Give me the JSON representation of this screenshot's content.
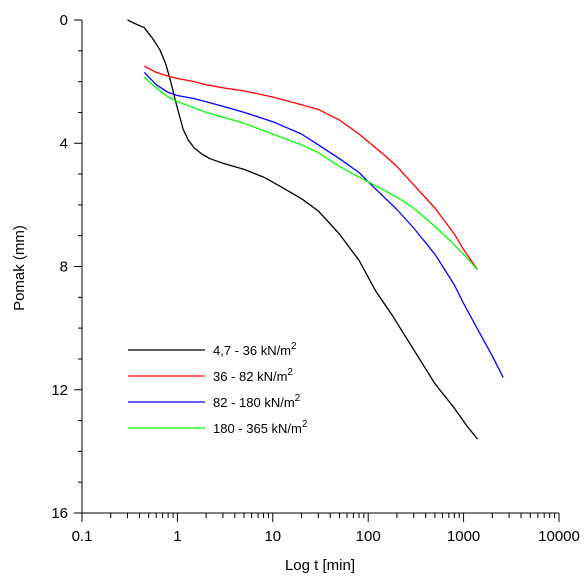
{
  "chart_data": {
    "type": "line",
    "title": "",
    "xlabel": "Log t [min]",
    "ylabel": "Pomak (mm)",
    "x_scale": "log",
    "xlim": [
      0.1,
      10000
    ],
    "ylim": [
      16,
      0
    ],
    "y_inverted": true,
    "x_ticks": [
      0.1,
      1,
      10,
      100,
      1000,
      10000
    ],
    "x_tick_labels": [
      "0.1",
      "1",
      "10",
      "100",
      "1000",
      "10000"
    ],
    "y_ticks": [
      0,
      4,
      8,
      12,
      16
    ],
    "y_tick_labels": [
      "0",
      "4",
      "8",
      "12",
      "16"
    ],
    "grid": false,
    "legend_position": "bottom-left",
    "series": [
      {
        "name": "4,7 - 36 kN/m",
        "name_superscript": "2",
        "color": "#000000",
        "x": [
          0.3,
          0.35,
          0.45,
          0.55,
          0.65,
          0.75,
          0.85,
          0.95,
          1.05,
          1.15,
          1.3,
          1.5,
          1.8,
          2.2,
          3,
          5,
          8,
          12,
          20,
          30,
          50,
          80,
          120,
          180,
          300,
          500,
          800,
          1100,
          1400
        ],
        "y": [
          0,
          0.1,
          0.25,
          0.6,
          0.95,
          1.4,
          2.0,
          2.6,
          3.1,
          3.55,
          3.9,
          4.15,
          4.35,
          4.5,
          4.65,
          4.85,
          5.1,
          5.4,
          5.8,
          6.2,
          6.95,
          7.8,
          8.8,
          9.6,
          10.7,
          11.8,
          12.6,
          13.2,
          13.6
        ]
      },
      {
        "name": "36 - 82 kN/m",
        "name_superscript": "2",
        "color": "#ff0000",
        "x": [
          0.45,
          0.6,
          0.8,
          1,
          1.5,
          2,
          3,
          5,
          10,
          20,
          30,
          50,
          80,
          100,
          150,
          200,
          300,
          500,
          800,
          1000,
          1400
        ],
        "y": [
          1.5,
          1.7,
          1.82,
          1.9,
          2.0,
          2.1,
          2.2,
          2.3,
          2.5,
          2.75,
          2.9,
          3.25,
          3.7,
          3.95,
          4.4,
          4.75,
          5.35,
          6.1,
          6.95,
          7.45,
          8.1
        ]
      },
      {
        "name": "82 - 180 kN/m",
        "name_superscript": "2",
        "color": "#0000ff",
        "x": [
          0.45,
          0.6,
          0.8,
          1,
          1.5,
          2,
          3,
          5,
          10,
          20,
          30,
          50,
          80,
          100,
          200,
          300,
          500,
          800,
          1000,
          1500,
          2000,
          2600
        ],
        "y": [
          1.7,
          2.1,
          2.35,
          2.45,
          2.55,
          2.65,
          2.8,
          3.0,
          3.3,
          3.7,
          4.05,
          4.5,
          4.95,
          5.25,
          6.15,
          6.75,
          7.6,
          8.6,
          9.2,
          10.2,
          10.9,
          11.6
        ]
      },
      {
        "name": "180 - 365 kN/m",
        "name_superscript": "2",
        "color": "#00ff00",
        "x": [
          0.45,
          0.6,
          0.8,
          1,
          1.5,
          2,
          3,
          5,
          10,
          20,
          30,
          50,
          80,
          100,
          200,
          300,
          500,
          800,
          1000,
          1400
        ],
        "y": [
          1.85,
          2.2,
          2.5,
          2.65,
          2.85,
          3.0,
          3.15,
          3.35,
          3.7,
          4.05,
          4.3,
          4.75,
          5.1,
          5.25,
          5.75,
          6.1,
          6.7,
          7.3,
          7.6,
          8.1
        ]
      }
    ]
  }
}
